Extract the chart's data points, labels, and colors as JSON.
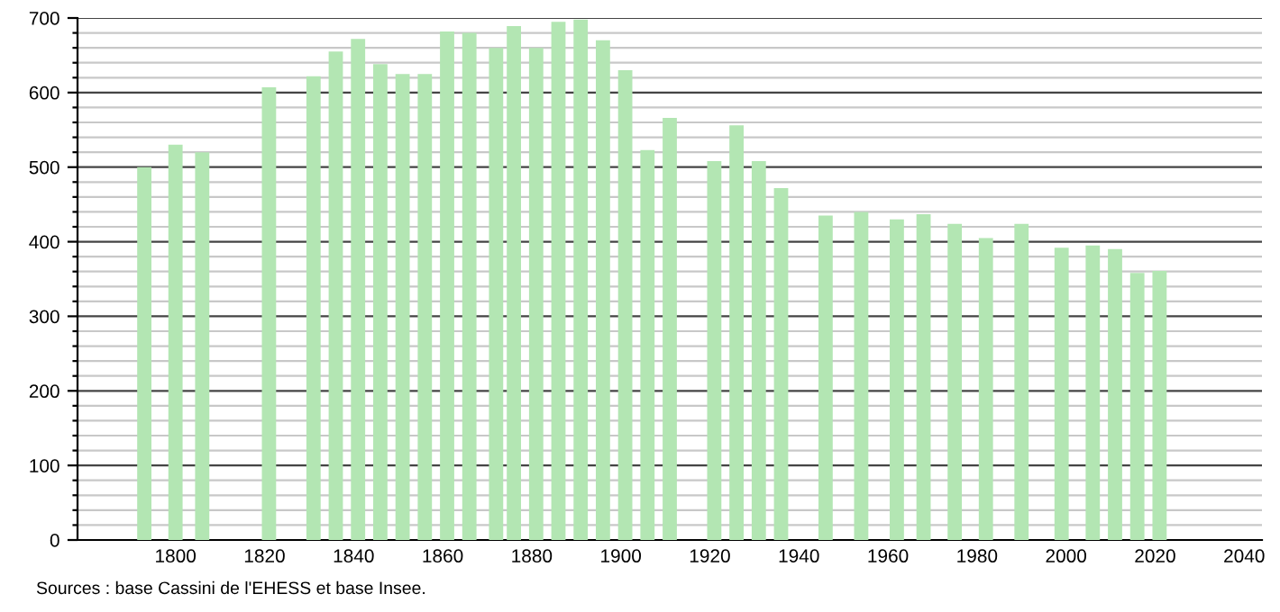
{
  "chart_data": {
    "type": "bar",
    "x": [
      1793,
      1800,
      1806,
      1821,
      1831,
      1836,
      1841,
      1846,
      1851,
      1856,
      1861,
      1866,
      1872,
      1876,
      1881,
      1886,
      1891,
      1896,
      1901,
      1906,
      1911,
      1921,
      1926,
      1931,
      1936,
      1946,
      1954,
      1962,
      1968,
      1975,
      1982,
      1990,
      1999,
      2006,
      2011,
      2016,
      2021
    ],
    "values": [
      500,
      530,
      520,
      607,
      622,
      655,
      672,
      638,
      625,
      625,
      682,
      680,
      660,
      689,
      660,
      695,
      698,
      670,
      630,
      523,
      566,
      508,
      556,
      508,
      472,
      435,
      440,
      430,
      437,
      424,
      405,
      424,
      392,
      395,
      390,
      358,
      361
    ],
    "color": "#b3e6b3",
    "xlim": [
      1778,
      2044
    ],
    "xticks": [
      1800,
      1820,
      1840,
      1860,
      1880,
      1900,
      1920,
      1940,
      1960,
      1980,
      2000,
      2020,
      2040
    ],
    "ylim": [
      0,
      700
    ],
    "yticks": [
      0,
      {
        "value": 20,
        "label": null
      },
      {
        "value": 40,
        "label": null
      },
      {
        "value": 60,
        "label": null
      },
      {
        "value": 80,
        "label": null
      },
      100,
      {
        "value": 120,
        "label": null
      },
      {
        "value": 140,
        "label": null
      },
      {
        "value": 160,
        "label": null
      },
      {
        "value": 180,
        "label": null
      },
      200,
      {
        "value": 220,
        "label": null
      },
      {
        "value": 240,
        "label": null
      },
      {
        "value": 260,
        "label": null
      },
      {
        "value": 280,
        "label": null
      },
      300,
      {
        "value": 320,
        "label": null
      },
      {
        "value": 340,
        "label": null
      },
      {
        "value": 360,
        "label": null
      },
      {
        "value": 380,
        "label": null
      },
      400,
      {
        "value": 420,
        "label": null
      },
      {
        "value": 440,
        "label": null
      },
      {
        "value": 460,
        "label": null
      },
      {
        "value": 480,
        "label": null
      },
      500,
      {
        "value": 520,
        "label": null
      },
      {
        "value": 540,
        "label": null
      },
      {
        "value": 560,
        "label": null
      },
      {
        "value": 580,
        "label": null
      },
      600,
      {
        "value": 620,
        "label": null
      },
      {
        "value": 640,
        "label": null
      },
      {
        "value": 660,
        "label": null
      },
      {
        "value": 680,
        "label": null
      },
      700
    ],
    "grid": "y",
    "annotations": [
      "Sources : base Cassini de l'EHESS et base Insee."
    ]
  }
}
